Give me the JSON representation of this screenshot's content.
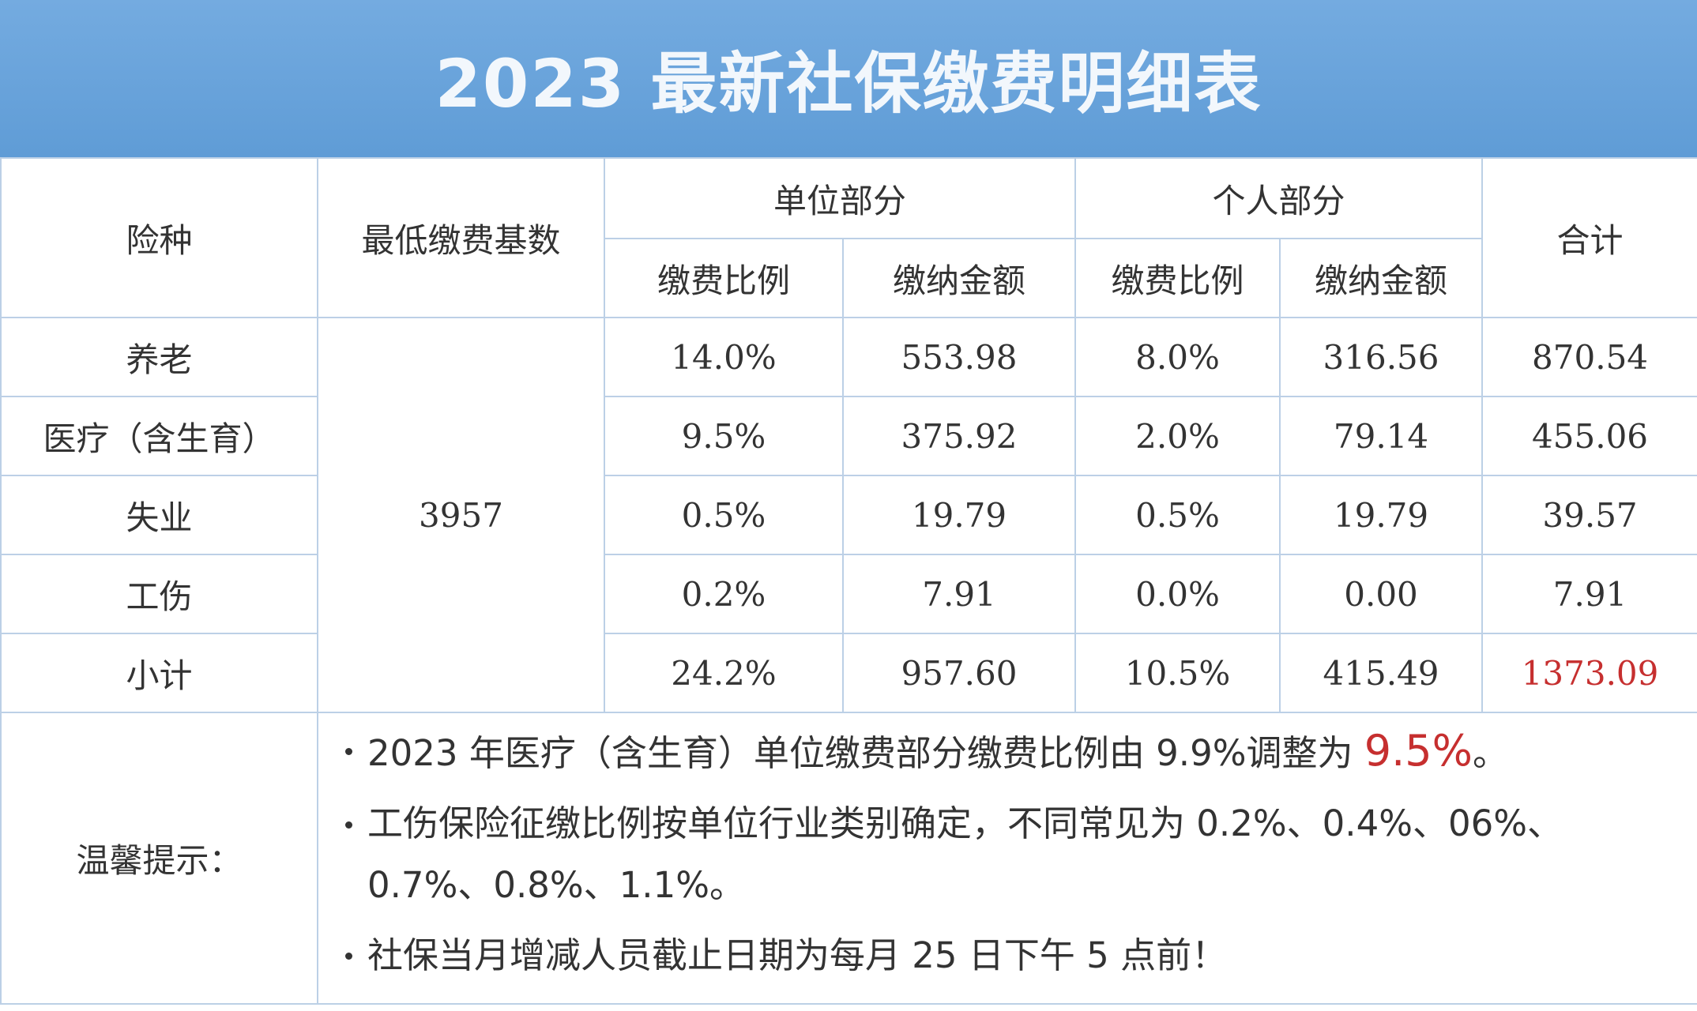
{
  "header": {
    "title": "2023 最新社保缴费明细表"
  },
  "table": {
    "header_row_1": [
      "险种",
      "最低缴费基数",
      "单位部分",
      "个人部分",
      "合计"
    ],
    "header_row_2": [
      "缴费比例",
      "缴纳金额",
      "缴费比例",
      "缴纳金额"
    ],
    "base": "3957",
    "rows": [
      [
        "养老",
        "14.0%",
        "553.98",
        "8.0%",
        "316.56",
        "870.54"
      ],
      [
        "医疗（含生育）",
        "9.5%",
        "375.92",
        "2.0%",
        "79.14",
        "455.06"
      ],
      [
        "失业",
        "0.5%",
        "19.79",
        "0.5%",
        "19.79",
        "39.57"
      ],
      [
        "工伤",
        "0.2%",
        "7.91",
        "0.0%",
        "0.00",
        "7.91"
      ],
      [
        "小计",
        "24.2%",
        "957.60",
        "10.5%",
        "415.49",
        "1373.09"
      ]
    ],
    "highlight_color": "#c62f2f"
  },
  "notes": {
    "label": "温馨提示：",
    "items": [
      {
        "text": "2023 年医疗（含生育）单位缴费部分缴费比例由 9.9%调整为 ",
        "highlight": "9.5%",
        "end": "。"
      },
      {
        "text": "工伤保险征缴比例按单位行业类别确定，不同常见为 0.2%、0.4%、06%、0.7%、0.8%、1.1%。"
      },
      {
        "text": "社保当月增减人员截止日期为每月 25 日下午 5 点前！"
      }
    ]
  }
}
